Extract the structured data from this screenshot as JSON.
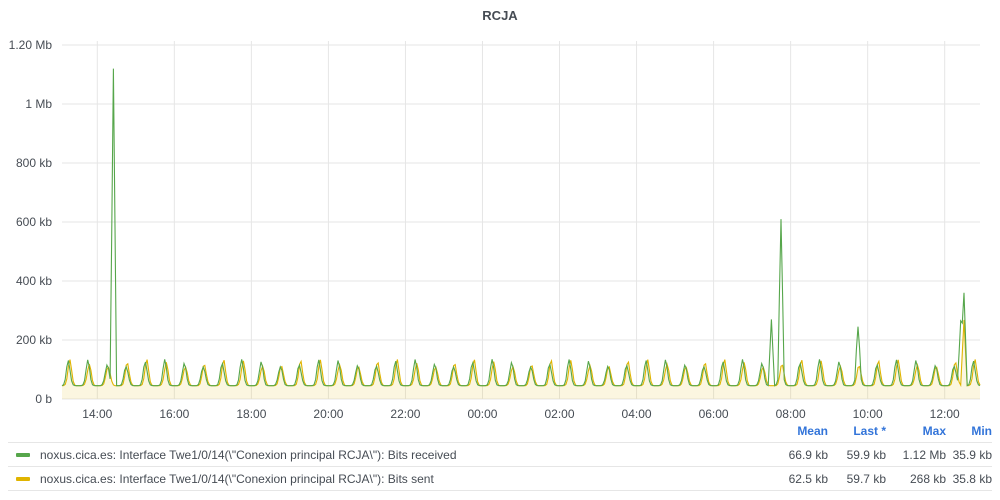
{
  "panel": {
    "title": "RCJA"
  },
  "legend": {
    "headers": {
      "mean": "Mean",
      "last": "Last *",
      "max": "Max",
      "min": "Min"
    },
    "rows": [
      {
        "name": "noxus.cica.es: Interface Twe1/0/14(\\\"Conexion principal RCJA\\\"): Bits received",
        "color": "#56a64b",
        "mean": "66.9 kb",
        "last": "59.9 kb",
        "max": "1.12 Mb",
        "min": "35.9 kb"
      },
      {
        "name": "noxus.cica.es: Interface Twe1/0/14(\\\"Conexion principal RCJA\\\"): Bits sent",
        "color": "#e0b400",
        "mean": "62.5 kb",
        "last": "59.7 kb",
        "max": "268 kb",
        "min": "35.8 kb"
      }
    ]
  },
  "chart_data": {
    "type": "line",
    "title": "RCJA",
    "xlabel": "",
    "ylabel": "",
    "x_ticks": [
      "14:00",
      "16:00",
      "18:00",
      "20:00",
      "22:00",
      "00:00",
      "02:00",
      "04:00",
      "06:00",
      "08:00",
      "10:00",
      "12:00"
    ],
    "y_ticks": [
      "0 b",
      "200 kb",
      "400 kb",
      "600 kb",
      "800 kb",
      "1 Mb",
      "1.20 Mb"
    ],
    "xlim": [
      "13:05",
      "12:55"
    ],
    "ylim_kb": [
      0,
      1200
    ],
    "grid": true,
    "legend_position": "bottom",
    "series": [
      {
        "name": "noxus.cica.es: Interface Twe1/0/14(\\\"Conexion principal RCJA\\\"): Bits received",
        "color": "#56a64b",
        "fill": false,
        "baseline_kb": [
          35,
          135
        ],
        "period_minutes": 30,
        "spikes": [
          {
            "time": "14:25",
            "value_kb": 1120
          },
          {
            "time": "07:30",
            "value_kb": 270
          },
          {
            "time": "07:45",
            "value_kb": 610
          },
          {
            "time": "09:45",
            "value_kb": 245
          },
          {
            "time": "12:25",
            "value_kb": 265
          },
          {
            "time": "12:30",
            "value_kb": 360
          }
        ]
      },
      {
        "name": "noxus.cica.es: Interface Twe1/0/14(\\\"Conexion principal RCJA\\\"): Bits sent",
        "color": "#e0b400",
        "fill": true,
        "baseline_kb": [
          35,
          135
        ],
        "period_minutes": 30,
        "spikes": [
          {
            "time": "12:30",
            "value_kb": 268
          }
        ]
      }
    ]
  }
}
